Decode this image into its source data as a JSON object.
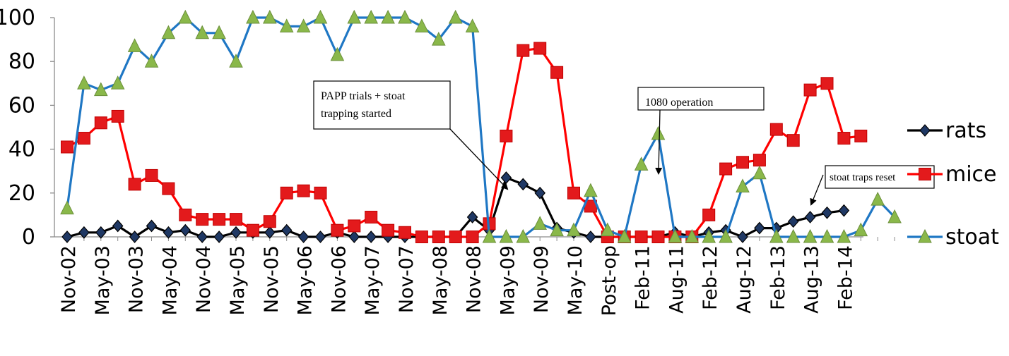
{
  "chart_data": {
    "type": "line",
    "ylim": [
      0,
      100
    ],
    "yticks": [
      0,
      20,
      40,
      60,
      80,
      100
    ],
    "grid": false,
    "legend_position": "right",
    "x_labels": [
      "Nov-02",
      "May-03",
      "Nov-03",
      "May-04",
      "Nov-04",
      "May-05",
      "Nov-05",
      "May-06",
      "Nov-06",
      "May-07",
      "Nov-07",
      "May-08",
      "Nov-08",
      "May-09",
      "Nov-09",
      "May-10",
      "Post-op",
      "Feb-11",
      "Aug-11",
      "Feb-12",
      "Aug-12",
      "Feb-13",
      "Aug-13",
      "Feb-14"
    ],
    "series": [
      {
        "name": "rats",
        "color": "#000000",
        "marker": "diamond",
        "marker_fill": "#1f3864",
        "values": [
          0,
          2,
          2,
          5,
          0,
          5,
          2,
          3,
          0,
          0,
          2,
          2,
          2,
          3,
          0,
          0,
          2,
          0,
          0,
          0,
          0,
          0,
          0,
          0,
          9,
          3,
          27,
          24,
          20,
          4,
          2,
          0,
          0,
          0,
          0,
          0,
          2,
          0,
          2,
          3,
          0,
          4,
          4,
          7,
          9,
          11,
          12
        ]
      },
      {
        "name": "mice",
        "color": "#ff0000",
        "marker": "square",
        "marker_fill": "#e31a1c",
        "values": [
          41,
          45,
          52,
          55,
          24,
          28,
          22,
          10,
          8,
          8,
          8,
          3,
          7,
          20,
          21,
          20,
          3,
          5,
          9,
          3,
          2,
          0,
          0,
          0,
          0,
          6,
          46,
          85,
          86,
          75,
          20,
          14,
          0,
          0,
          0,
          0,
          0,
          0,
          10,
          31,
          34,
          35,
          49,
          44,
          67,
          70,
          45,
          46
        ]
      },
      {
        "name": "stoat",
        "color": "#1f77c4",
        "marker": "triangle",
        "marker_fill": "#8ab84a",
        "values": [
          13,
          70,
          67,
          70,
          87,
          80,
          93,
          100,
          93,
          93,
          80,
          100,
          100,
          96,
          96,
          100,
          83,
          100,
          100,
          100,
          100,
          96,
          90,
          100,
          96,
          0,
          0,
          0,
          6,
          3,
          3,
          21,
          3,
          0,
          33,
          47,
          0,
          0,
          0,
          0,
          23,
          29,
          0,
          0,
          0,
          0,
          0,
          3,
          17,
          9
        ]
      }
    ],
    "annotations": [
      "PAPP trials + stoat trapping started",
      "1080 operation",
      "stoat traps reset"
    ]
  }
}
